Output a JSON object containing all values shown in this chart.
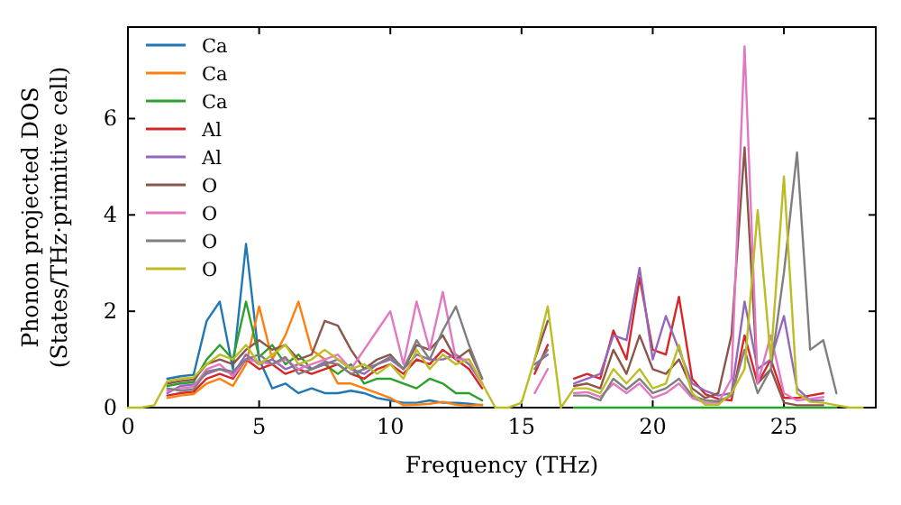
{
  "chart_data": {
    "type": "line",
    "xlabel": "Frequency (THz)",
    "ylabel": "Phonon projected DOS\n(States/THz·primitive cell)",
    "xlim": [
      0,
      28.5
    ],
    "ylim": [
      0,
      7.9
    ],
    "xticks": [
      0,
      5,
      10,
      15,
      20,
      25
    ],
    "yticks": [
      0,
      2,
      4,
      6
    ],
    "grid": false,
    "legend": "top left",
    "marker": "none",
    "line_style": "solid",
    "x": [
      0,
      0.5,
      1,
      1.5,
      2,
      2.5,
      3,
      3.5,
      4,
      4.5,
      5,
      5.5,
      6,
      6.5,
      7,
      7.5,
      8,
      8.5,
      9,
      9.5,
      10,
      10.5,
      11,
      11.5,
      12,
      12.5,
      13,
      13.5,
      14,
      14.5,
      15,
      15.5,
      16,
      16.5,
      17,
      17.5,
      18,
      18.5,
      19,
      19.5,
      20,
      20.5,
      21,
      21.5,
      22,
      22.5,
      23,
      23.5,
      24,
      24.5,
      25,
      25.5,
      26,
      26.5,
      27,
      27.5,
      28
    ],
    "series": [
      {
        "name": "Ca",
        "color": "#1f77b4",
        "values": [
          null,
          null,
          null,
          0.6,
          0.65,
          0.68,
          1.8,
          2.2,
          0.8,
          3.4,
          1.0,
          0.4,
          0.5,
          0.3,
          0.4,
          0.3,
          0.3,
          0.35,
          0.3,
          0.2,
          0.15,
          0.1,
          0.1,
          0.15,
          0.1,
          0.1,
          0.08,
          0.05,
          null,
          null,
          null,
          null,
          null,
          null,
          null,
          null,
          null,
          null,
          null,
          null,
          null,
          null,
          null,
          null,
          null,
          null,
          null,
          null,
          null,
          null,
          null,
          null,
          null,
          null,
          null,
          null,
          null
        ]
      },
      {
        "name": "Ca",
        "color": "#ff7f0e",
        "values": [
          null,
          null,
          null,
          0.2,
          0.25,
          0.28,
          0.5,
          0.6,
          0.45,
          0.9,
          2.1,
          1.0,
          1.5,
          2.2,
          1.2,
          1.0,
          0.5,
          0.5,
          0.4,
          0.3,
          0.2,
          0.05,
          0.06,
          0.08,
          0.12,
          0.06,
          0.04,
          0.06,
          null,
          null,
          null,
          null,
          null,
          null,
          null,
          null,
          null,
          null,
          null,
          null,
          null,
          null,
          null,
          null,
          null,
          null,
          null,
          null,
          null,
          null,
          null,
          null,
          null,
          null,
          null,
          null,
          null
        ]
      },
      {
        "name": "Ca",
        "color": "#2ca02c",
        "values": [
          null,
          null,
          null,
          0.45,
          0.5,
          0.53,
          1.0,
          1.3,
          1.0,
          2.2,
          1.05,
          1.3,
          0.9,
          1.1,
          0.8,
          0.9,
          0.7,
          0.9,
          0.5,
          0.6,
          0.6,
          0.5,
          0.4,
          0.6,
          0.5,
          0.3,
          0.3,
          0.15,
          null,
          null,
          null,
          null,
          null,
          null,
          0,
          0,
          0,
          0,
          0,
          0,
          0,
          0,
          0,
          0,
          0,
          0,
          0,
          0,
          0,
          0,
          0,
          0,
          0,
          0,
          0,
          null,
          null
        ]
      },
      {
        "name": "Al",
        "color": "#d62728",
        "values": [
          null,
          null,
          null,
          0.25,
          0.3,
          0.33,
          0.6,
          0.7,
          0.6,
          1.0,
          0.8,
          0.9,
          0.7,
          0.8,
          0.7,
          0.8,
          0.9,
          0.7,
          0.6,
          0.8,
          0.9,
          0.7,
          1.0,
          0.9,
          1.2,
          1.0,
          0.8,
          0.4,
          null,
          null,
          null,
          0.7,
          1.3,
          null,
          0.6,
          0.7,
          0.6,
          1.6,
          1.0,
          2.7,
          1.2,
          1.1,
          2.3,
          0.6,
          0.28,
          0.18,
          0.15,
          1.5,
          0.5,
          1.0,
          0.2,
          0.2,
          0.25,
          0.3,
          null,
          null,
          null
        ]
      },
      {
        "name": "Al",
        "color": "#9467bd",
        "values": [
          null,
          null,
          null,
          0.3,
          0.45,
          0.48,
          0.7,
          0.8,
          0.7,
          1.1,
          0.9,
          1.0,
          0.8,
          0.9,
          0.8,
          0.9,
          1.0,
          0.8,
          0.7,
          0.9,
          1.0,
          0.8,
          1.1,
          1.0,
          1.0,
          1.1,
          0.9,
          0.5,
          null,
          null,
          null,
          0.9,
          1.1,
          null,
          0.5,
          0.6,
          0.7,
          1.5,
          1.4,
          2.9,
          1.0,
          1.9,
          1.2,
          0.5,
          0.35,
          0.25,
          0.3,
          2.2,
          0.8,
          1.0,
          1.9,
          0.4,
          0.15,
          0.15,
          null,
          null,
          null
        ]
      },
      {
        "name": "O",
        "color": "#8c564b",
        "values": [
          null,
          null,
          null,
          0.5,
          0.55,
          0.58,
          0.9,
          1.0,
          0.9,
          1.2,
          1.4,
          1.2,
          1.3,
          1.0,
          1.1,
          1.8,
          1.7,
          1.2,
          0.8,
          1.0,
          1.1,
          0.8,
          1.3,
          1.2,
          1.5,
          1.0,
          1.2,
          0.6,
          null,
          null,
          null,
          1.0,
          1.8,
          null,
          0.45,
          0.5,
          0.4,
          1.2,
          0.7,
          1.5,
          0.8,
          0.7,
          1.0,
          0.4,
          0.2,
          0.3,
          1.5,
          5.4,
          0.5,
          0.8,
          0.1,
          0.05,
          0.05,
          0.05,
          null,
          null,
          null
        ]
      },
      {
        "name": "O",
        "color": "#e377c2",
        "values": [
          null,
          null,
          null,
          0.35,
          0.4,
          0.43,
          0.8,
          0.9,
          0.65,
          1.0,
          0.95,
          0.9,
          1.0,
          0.8,
          0.9,
          1.0,
          1.1,
          0.8,
          1.2,
          1.6,
          2.0,
          0.9,
          2.2,
          1.2,
          2.4,
          1.0,
          1.0,
          0.5,
          null,
          null,
          null,
          0.3,
          0.8,
          null,
          0.3,
          0.32,
          0.22,
          0.5,
          0.3,
          0.5,
          0.2,
          0.3,
          0.5,
          0.2,
          0.1,
          0.1,
          0.6,
          7.5,
          0.5,
          1.5,
          0.3,
          0.15,
          0.18,
          0.22,
          null,
          null,
          null
        ]
      },
      {
        "name": "O",
        "color": "#7f7f7f",
        "values": [
          null,
          null,
          null,
          0.4,
          0.35,
          0.38,
          0.75,
          0.8,
          0.75,
          1.0,
          1.1,
          0.9,
          1.05,
          0.7,
          0.8,
          0.95,
          0.9,
          0.7,
          0.8,
          0.9,
          1.05,
          0.8,
          1.4,
          1.0,
          1.6,
          2.1,
          1.3,
          0.6,
          null,
          null,
          null,
          0.8,
          1.2,
          null,
          0.25,
          0.25,
          0.15,
          0.6,
          0.38,
          0.6,
          0.3,
          0.4,
          0.6,
          0.25,
          0.15,
          0.13,
          0.25,
          1.2,
          0.3,
          0.8,
          2.8,
          5.3,
          1.2,
          1.4,
          0.3,
          null,
          null
        ]
      },
      {
        "name": "O",
        "color": "#bcbd22",
        "values": [
          0,
          0,
          0.05,
          0.55,
          0.6,
          0.63,
          0.9,
          1.1,
          1.0,
          1.3,
          0.9,
          1.1,
          1.3,
          0.9,
          1.0,
          1.2,
          1.0,
          0.8,
          0.9,
          0.7,
          0.9,
          0.6,
          1.2,
          0.8,
          1.1,
          0.9,
          1.0,
          0.5,
          0,
          0,
          0.1,
          1.0,
          2.1,
          0,
          0.4,
          0.4,
          0.3,
          0.8,
          0.5,
          0.8,
          0.4,
          0.5,
          1.3,
          0.3,
          0.06,
          0.06,
          0.3,
          0.8,
          4.1,
          1.0,
          4.8,
          0.3,
          0.12,
          0.1,
          0.05,
          0,
          0
        ]
      }
    ]
  }
}
